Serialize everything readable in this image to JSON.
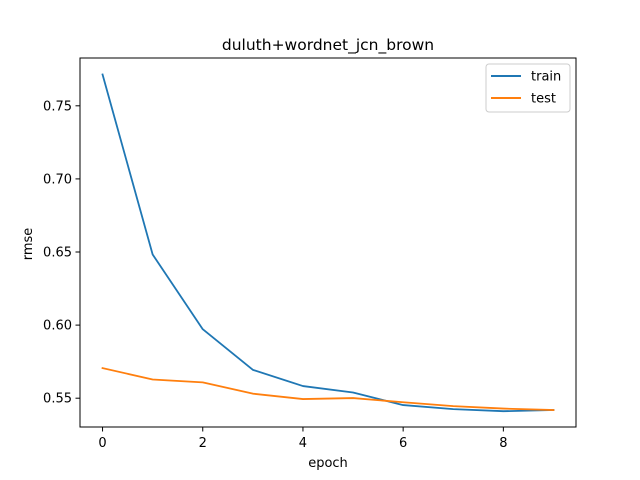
{
  "chart_data": {
    "type": "line",
    "title": "duluth+wordnet_jcn_brown",
    "xlabel": "epoch",
    "ylabel": "rmse",
    "xlim": [
      -0.45,
      9.45
    ],
    "ylim": [
      0.5303,
      0.7827
    ],
    "x_ticks": [
      0,
      2,
      4,
      6,
      8
    ],
    "y_ticks": [
      0.55,
      0.6,
      0.65,
      0.7,
      0.75
    ],
    "y_tick_labels": [
      "0.55",
      "0.60",
      "0.65",
      "0.70",
      "0.75"
    ],
    "grid": false,
    "legend_position": "top-right",
    "x": [
      0,
      1,
      2,
      3,
      4,
      5,
      6,
      7,
      8,
      9
    ],
    "series": [
      {
        "name": "train",
        "color": "#1f77b4",
        "values": [
          0.7714,
          0.6483,
          0.5972,
          0.5694,
          0.5583,
          0.5539,
          0.5453,
          0.5425,
          0.5411,
          0.5419
        ]
      },
      {
        "name": "test",
        "color": "#ff7f0e",
        "values": [
          0.5706,
          0.5628,
          0.5608,
          0.5531,
          0.5494,
          0.5501,
          0.5472,
          0.5446,
          0.5429,
          0.5419
        ]
      }
    ]
  }
}
